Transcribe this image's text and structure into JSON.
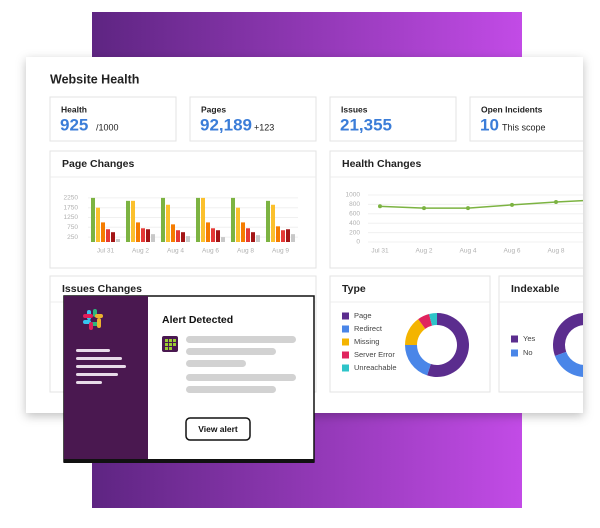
{
  "header": {
    "title": "Website Health"
  },
  "stats": [
    {
      "label": "Health",
      "value": "925",
      "suffix": "/1000"
    },
    {
      "label": "Pages",
      "value": "92,189",
      "suffix": "+123"
    },
    {
      "label": "Issues",
      "value": "21,355"
    },
    {
      "label": "Open Incidents",
      "value": "10",
      "suffix": "This scope"
    }
  ],
  "page_changes": {
    "title": "Page Changes",
    "chart_data": {
      "type": "bar",
      "categories": [
        "Jul 31",
        "Aug 2",
        "Aug 4",
        "Aug 6",
        "Aug 8",
        "Aug 9"
      ],
      "series": [
        {
          "color": "#7cb342",
          "values": [
            2250,
            2100,
            2250,
            2250,
            2250,
            2100
          ]
        },
        {
          "color": "#fbc02d",
          "values": [
            1750,
            2100,
            1900,
            2250,
            1750,
            1900
          ]
        },
        {
          "color": "#f57c00",
          "values": [
            1000,
            1000,
            900,
            1000,
            1000,
            800
          ]
        },
        {
          "color": "#e53935",
          "values": [
            650,
            700,
            600,
            700,
            700,
            600
          ]
        },
        {
          "color": "#a31515",
          "values": [
            500,
            650,
            500,
            600,
            500,
            650
          ]
        },
        {
          "color": "#c8c8c8",
          "values": [
            150,
            400,
            300,
            250,
            350,
            400
          ]
        }
      ],
      "ylim": [
        0,
        2500
      ],
      "yticks": [
        250,
        750,
        1250,
        1750,
        2250
      ]
    }
  },
  "health_changes": {
    "title": "Health Changes",
    "chart_data": {
      "type": "line",
      "categories": [
        "Jul 31",
        "Aug 2",
        "Aug 4",
        "Aug 6",
        "Aug 8",
        null
      ],
      "values": [
        760,
        720,
        720,
        790,
        850,
        900
      ],
      "color": "#7cb342",
      "ylim": [
        0,
        1000
      ],
      "yticks": [
        0,
        200,
        400,
        600,
        800,
        1000
      ]
    }
  },
  "issues_changes": {
    "title": "Issues Changes"
  },
  "type_panel": {
    "title": "Type",
    "chart_data": {
      "type": "pie",
      "categories": [
        "Page",
        "Redirect",
        "Missing",
        "Server Error",
        "Unreachable"
      ],
      "values": [
        55,
        20,
        15,
        6,
        4
      ],
      "colors": [
        "#5b2d8e",
        "#4a86e8",
        "#f4b400",
        "#e0245e",
        "#2ec4c9"
      ]
    }
  },
  "indexable_panel": {
    "title": "Indexable",
    "chart_data": {
      "type": "pie",
      "categories": [
        "Yes",
        "No"
      ],
      "values": [
        75,
        25
      ],
      "colors": [
        "#5b2d8e",
        "#4a86e8"
      ]
    }
  },
  "alert": {
    "title": "Alert Detected",
    "button": "View alert"
  }
}
